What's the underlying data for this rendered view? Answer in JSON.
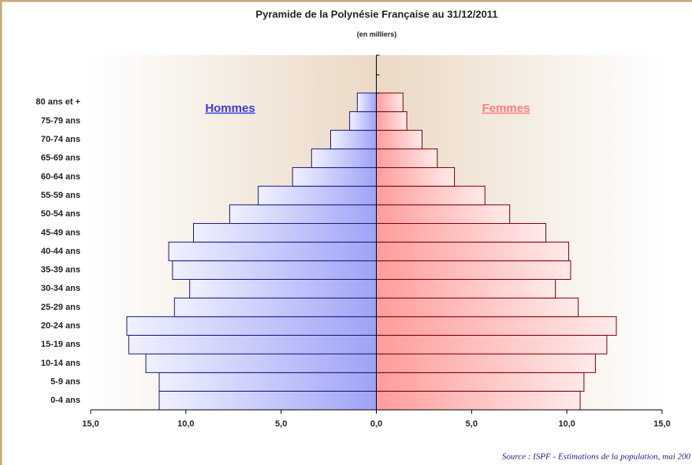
{
  "chart_data": {
    "type": "pyramid",
    "title": "Pyramide de la Polynésie Française au 31/12/2011",
    "subtitle": "(en milliers)",
    "categories": [
      "0-4 ans",
      "5-9 ans",
      "10-14 ans",
      "15-19 ans",
      "20-24 ans",
      "25-29 ans",
      "30-34 ans",
      "35-39 ans",
      "40-44 ans",
      "45-49 ans",
      "50-54 ans",
      "55-59 ans",
      "60-64 ans",
      "65-69 ans",
      "70-74 ans",
      "75-79 ans",
      "80 ans et +"
    ],
    "series": [
      {
        "name": "Hommes",
        "color": "#3b3be0",
        "values": [
          11.4,
          11.4,
          12.1,
          13.0,
          13.1,
          10.6,
          9.8,
          10.7,
          10.9,
          9.6,
          7.7,
          6.2,
          4.4,
          3.4,
          2.4,
          1.4,
          1.0
        ]
      },
      {
        "name": "Femmes",
        "color": "#ff7f7f",
        "values": [
          10.7,
          10.9,
          11.5,
          12.1,
          12.6,
          10.6,
          9.4,
          10.2,
          10.1,
          8.9,
          7.0,
          5.7,
          4.1,
          3.2,
          2.4,
          1.6,
          1.4
        ]
      }
    ],
    "xlim": [
      -15,
      15
    ],
    "xticks": [
      {
        "value": -15,
        "label": "15,0"
      },
      {
        "value": -10,
        "label": "10,0"
      },
      {
        "value": -5,
        "label": "5,0"
      },
      {
        "value": 0,
        "label": "0,0"
      },
      {
        "value": 5,
        "label": "5,0"
      },
      {
        "value": 10,
        "label": "10,0"
      },
      {
        "value": 15,
        "label": "15,0"
      }
    ],
    "source": "Source : ISPF - Estimations de la population, mai 200"
  }
}
